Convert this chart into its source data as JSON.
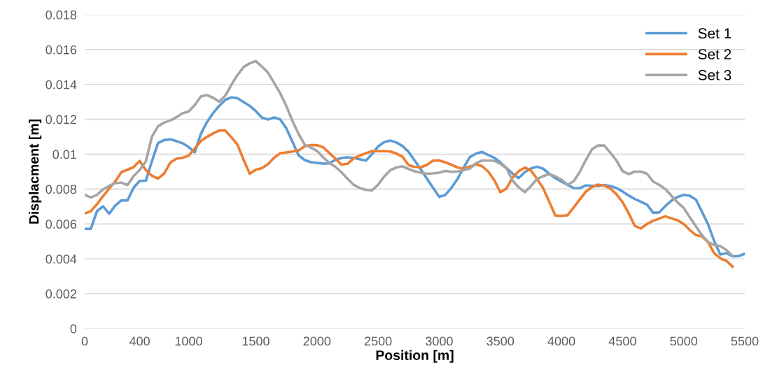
{
  "chart_data": {
    "type": "line",
    "xlabel": "Position [m]",
    "ylabel": "Displacment [m]",
    "categories": [
      "0",
      null,
      null,
      null,
      null,
      null,
      null,
      null,
      null,
      "400",
      null,
      null,
      null,
      null,
      null,
      null,
      null,
      "1000",
      null,
      null,
      null,
      null,
      null,
      null,
      null,
      null,
      null,
      null,
      "1500",
      null,
      null,
      null,
      null,
      null,
      null,
      null,
      null,
      null,
      "2000",
      null,
      null,
      null,
      null,
      null,
      null,
      null,
      null,
      null,
      "2500",
      null,
      null,
      null,
      null,
      null,
      null,
      null,
      null,
      null,
      "3000",
      null,
      null,
      null,
      null,
      null,
      null,
      null,
      null,
      null,
      "3500",
      null,
      null,
      null,
      null,
      null,
      null,
      null,
      null,
      null,
      "4000",
      null,
      null,
      null,
      null,
      null,
      null,
      null,
      null,
      null,
      "4500",
      null,
      null,
      null,
      null,
      null,
      null,
      null,
      null,
      null,
      "5000",
      null,
      null,
      null,
      null,
      null,
      null,
      null,
      null,
      null,
      "5500"
    ],
    "ylim": [
      0,
      0.018
    ],
    "yticks": [
      0,
      0.002,
      0.004,
      0.006,
      0.008,
      0.01,
      0.012,
      0.014,
      0.016,
      0.018
    ],
    "grid": "y",
    "legend": "top right",
    "marker": "none",
    "line_style": "solid",
    "series": [
      {
        "name": "Set 1",
        "color": "#5b9bd5",
        "values": [
          0.00572,
          0.00572,
          0.00673,
          0.00701,
          0.00659,
          0.00705,
          0.00735,
          0.00735,
          0.00808,
          0.00847,
          0.00848,
          0.0096,
          0.01064,
          0.01081,
          0.01085,
          0.01075,
          0.01063,
          0.01041,
          0.01011,
          0.01116,
          0.01184,
          0.01235,
          0.01277,
          0.01312,
          0.01326,
          0.01321,
          0.01299,
          0.01277,
          0.01247,
          0.0121,
          0.01199,
          0.01211,
          0.01199,
          0.01148,
          0.0107,
          0.00993,
          0.00966,
          0.00954,
          0.0095,
          0.00946,
          0.00947,
          0.00967,
          0.00978,
          0.00982,
          0.00978,
          0.00971,
          0.00963,
          0.01,
          0.01044,
          0.01069,
          0.01078,
          0.01067,
          0.01047,
          0.01013,
          0.00963,
          0.00912,
          0.00859,
          0.00807,
          0.00756,
          0.00766,
          0.00807,
          0.00858,
          0.00923,
          0.00983,
          0.01003,
          0.01013,
          0.00996,
          0.0098,
          0.00953,
          0.00921,
          0.00889,
          0.00863,
          0.00897,
          0.00918,
          0.00928,
          0.00917,
          0.00888,
          0.00862,
          0.00843,
          0.00824,
          0.00806,
          0.00805,
          0.00821,
          0.00819,
          0.00817,
          0.00824,
          0.00817,
          0.00806,
          0.00786,
          0.00763,
          0.00743,
          0.00727,
          0.00711,
          0.00664,
          0.00666,
          0.00703,
          0.00734,
          0.00755,
          0.00767,
          0.00762,
          0.0074,
          0.00669,
          0.00597,
          0.00501,
          0.00425,
          0.00432,
          0.00414,
          0.00416,
          0.00429
        ]
      },
      {
        "name": "Set 2",
        "color": "#ed7d31",
        "values": [
          0.0066,
          0.00673,
          0.00713,
          0.00759,
          0.00802,
          0.00844,
          0.00897,
          0.00911,
          0.00926,
          0.00961,
          0.00909,
          0.00876,
          0.0086,
          0.00889,
          0.00952,
          0.00974,
          0.00979,
          0.00991,
          0.01033,
          0.01075,
          0.01099,
          0.01119,
          0.01136,
          0.01136,
          0.01097,
          0.01055,
          0.00967,
          0.00888,
          0.00911,
          0.0092,
          0.00943,
          0.0098,
          0.01005,
          0.0101,
          0.01015,
          0.01021,
          0.01045,
          0.01052,
          0.01052,
          0.0104,
          0.01008,
          0.00975,
          0.0094,
          0.00945,
          0.00976,
          0.00992,
          0.01005,
          0.01017,
          0.01017,
          0.01017,
          0.01015,
          0.01004,
          0.00985,
          0.00937,
          0.00927,
          0.00925,
          0.00939,
          0.00963,
          0.00964,
          0.00953,
          0.0094,
          0.00924,
          0.00916,
          0.00929,
          0.00941,
          0.00932,
          0.00901,
          0.00852,
          0.00782,
          0.00803,
          0.00865,
          0.00902,
          0.00923,
          0.00907,
          0.00859,
          0.00806,
          0.00728,
          0.00648,
          0.00646,
          0.0065,
          0.00694,
          0.0074,
          0.00785,
          0.00812,
          0.00826,
          0.00819,
          0.00803,
          0.0077,
          0.00725,
          0.00661,
          0.00589,
          0.00574,
          0.006,
          0.00618,
          0.00631,
          0.00644,
          0.00632,
          0.00621,
          0.006,
          0.00565,
          0.00536,
          0.00528,
          0.00495,
          0.00432,
          0.00403,
          0.00388,
          0.00355,
          null,
          null
        ]
      },
      {
        "name": "Set 3",
        "color": "#a5a5a5",
        "values": [
          0.00767,
          0.00752,
          0.00766,
          0.00798,
          0.00818,
          0.00834,
          0.00837,
          0.00823,
          0.00874,
          0.0091,
          0.00958,
          0.01101,
          0.0116,
          0.01181,
          0.01193,
          0.01212,
          0.01235,
          0.01245,
          0.01281,
          0.01331,
          0.01339,
          0.01324,
          0.01301,
          0.01336,
          0.01398,
          0.01454,
          0.015,
          0.01521,
          0.01534,
          0.01502,
          0.01467,
          0.01408,
          0.01349,
          0.01275,
          0.0119,
          0.01116,
          0.01055,
          0.01038,
          0.01019,
          0.00983,
          0.0095,
          0.00928,
          0.00897,
          0.00859,
          0.00825,
          0.00806,
          0.00796,
          0.00792,
          0.00825,
          0.00872,
          0.00908,
          0.00924,
          0.0093,
          0.00915,
          0.00902,
          0.00894,
          0.00888,
          0.0089,
          0.00894,
          0.00904,
          0.00899,
          0.00901,
          0.00908,
          0.00917,
          0.00948,
          0.00964,
          0.00963,
          0.00962,
          0.00946,
          0.00919,
          0.00849,
          0.0081,
          0.00782,
          0.00817,
          0.00857,
          0.00874,
          0.00886,
          0.00873,
          0.00854,
          0.00824,
          0.00845,
          0.00898,
          0.00967,
          0.01028,
          0.0105,
          0.0105,
          0.01009,
          0.00964,
          0.00903,
          0.00886,
          0.009,
          0.009,
          0.00888,
          0.00843,
          0.00824,
          0.008,
          0.00762,
          0.00723,
          0.00692,
          0.00638,
          0.00586,
          0.00535,
          0.00496,
          0.00479,
          0.00473,
          0.0045,
          0.00417,
          null,
          null
        ]
      }
    ]
  }
}
